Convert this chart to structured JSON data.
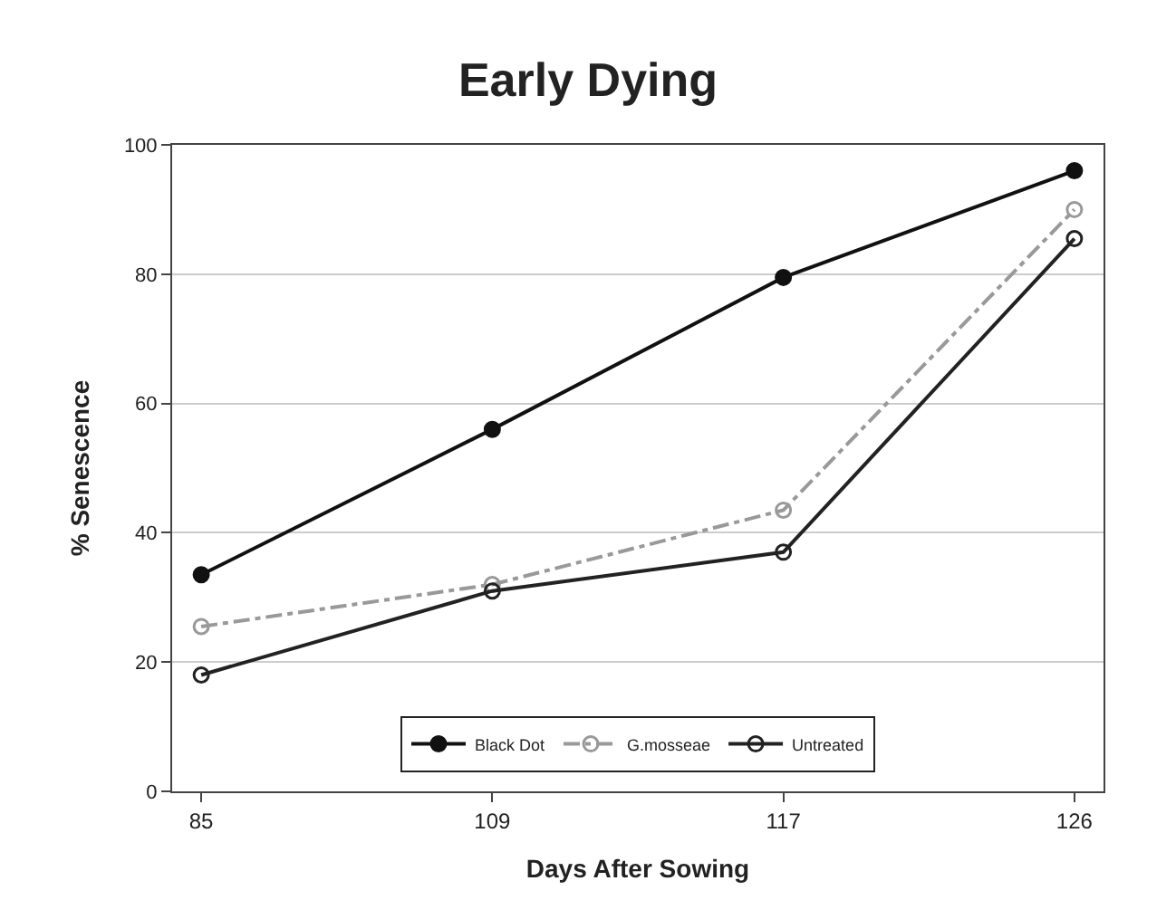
{
  "chart_data": {
    "type": "line",
    "title": "Early Dying",
    "xlabel": "Days After Sowing",
    "ylabel": "% Senescence",
    "categories": [
      "85",
      "109",
      "117",
      "126"
    ],
    "series": [
      {
        "name": "Black Dot",
        "color": "#111111",
        "values": [
          33.5,
          56,
          79.5,
          96
        ],
        "marker": "circle",
        "line_style": "solid"
      },
      {
        "name": "G.mosseae",
        "color": "#999999",
        "values": [
          25.5,
          32,
          43.5,
          90
        ],
        "marker": "circle-open",
        "line_style": "dashdot"
      },
      {
        "name": "Untreated",
        "color": "#222222",
        "values": [
          18,
          31,
          37,
          85.5
        ],
        "marker": "circle-open",
        "line_style": "solid"
      }
    ],
    "ylim": [
      0,
      100
    ],
    "yticks": [
      0,
      20,
      40,
      60,
      80,
      100
    ],
    "grid": "y",
    "legend": "bottom"
  }
}
